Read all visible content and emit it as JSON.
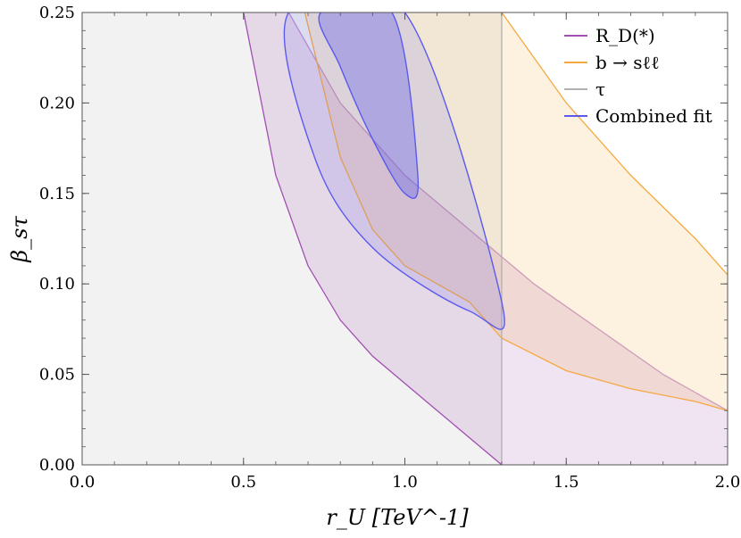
{
  "chart_data": {
    "type": "area",
    "title": "",
    "xlabel": "r_U [TeV^-1]",
    "ylabel": "β_sτ",
    "xlim": [
      0,
      2
    ],
    "ylim": [
      0,
      0.25
    ],
    "x_ticks": [
      "0.0",
      "0.5",
      "1.0",
      "1.5",
      "2.0"
    ],
    "y_ticks": [
      "0.00",
      "0.05",
      "0.10",
      "0.15",
      "0.20",
      "0.25"
    ],
    "x_tick_values": [
      0,
      0.5,
      1.0,
      1.5,
      2.0
    ],
    "y_tick_values": [
      0,
      0.05,
      0.1,
      0.15,
      0.2,
      0.25
    ],
    "legend_placement": "top-right",
    "grid": false,
    "series": [
      {
        "name": "R_D(*)",
        "color": "#a050b0",
        "region": "band",
        "lower_boundary": [
          [
            0.5,
            0.25
          ],
          [
            0.6,
            0.16
          ],
          [
            0.7,
            0.11
          ],
          [
            0.8,
            0.08
          ],
          [
            0.9,
            0.06
          ],
          [
            1.0,
            0.045
          ],
          [
            1.1,
            0.03
          ],
          [
            1.2,
            0.015
          ],
          [
            1.3,
            0.0
          ]
        ],
        "upper_boundary": [
          [
            0.64,
            0.25
          ],
          [
            0.8,
            0.2
          ],
          [
            1.0,
            0.16
          ],
          [
            1.2,
            0.13
          ],
          [
            1.4,
            0.1
          ],
          [
            1.6,
            0.075
          ],
          [
            1.8,
            0.05
          ],
          [
            2.0,
            0.03
          ]
        ]
      },
      {
        "name": "b → sℓℓ",
        "color": "#f5a940",
        "region": "band",
        "lower_boundary": [
          [
            0.69,
            0.25
          ],
          [
            0.8,
            0.17
          ],
          [
            0.9,
            0.13
          ],
          [
            1.0,
            0.11
          ],
          [
            1.1,
            0.1
          ],
          [
            1.2,
            0.09
          ],
          [
            1.3,
            0.07
          ],
          [
            1.5,
            0.052
          ],
          [
            1.7,
            0.042
          ],
          [
            1.9,
            0.035
          ],
          [
            2.0,
            0.03
          ]
        ],
        "upper_boundary": [
          [
            1.3,
            0.25
          ],
          [
            1.5,
            0.2
          ],
          [
            1.7,
            0.16
          ],
          [
            1.9,
            0.125
          ],
          [
            2.0,
            0.105
          ]
        ]
      },
      {
        "name": "τ",
        "color": "#b0b0b0",
        "region": "excluded_below",
        "bound_x": 1.3
      },
      {
        "name": "Combined fit",
        "color": "#5a5aee",
        "region": "contours",
        "inner_contour": [
          [
            0.74,
            0.25
          ],
          [
            0.96,
            0.25
          ],
          [
            1.04,
            0.16
          ],
          [
            1.0,
            0.15
          ],
          [
            0.9,
            0.18
          ],
          [
            0.8,
            0.22
          ]
        ],
        "outer_contour": [
          [
            0.64,
            0.25
          ],
          [
            1.0,
            0.25
          ],
          [
            1.3,
            0.09
          ],
          [
            1.2,
            0.085
          ],
          [
            0.9,
            0.12
          ],
          [
            0.72,
            0.17
          ]
        ]
      }
    ]
  }
}
